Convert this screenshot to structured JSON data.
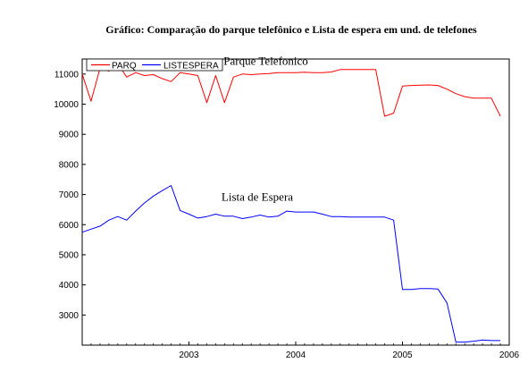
{
  "chart_data": {
    "type": "line",
    "title": "Gráfico: Comparação do parque telefônico e Lista de espera em und. de telefones",
    "xlabel": "",
    "ylabel": "",
    "xlim": [
      2002.0,
      2006.0
    ],
    "ylim": [
      2000,
      11500
    ],
    "x_ticks": [
      "2003",
      "2004",
      "2005",
      "2006"
    ],
    "y_ticks": [
      "3000",
      "4000",
      "5000",
      "6000",
      "7000",
      "8000",
      "9000",
      "10000",
      "11000"
    ],
    "legend": {
      "placement": "top-left",
      "entries": [
        "PARQ",
        "LISTESPERA"
      ]
    },
    "annotations": [
      {
        "text": "Parque Telefonico",
        "x": 2003.72,
        "y": 11300
      },
      {
        "text": "Lista de Espera",
        "x": 2003.64,
        "y": 6800
      }
    ],
    "series": [
      {
        "name": "PARQ",
        "color": "#ff0000",
        "x": [
          2002.0,
          2002.083,
          2002.167,
          2002.25,
          2002.333,
          2002.417,
          2002.5,
          2002.583,
          2002.667,
          2002.75,
          2002.833,
          2002.917,
          2003.0,
          2003.083,
          2003.167,
          2003.25,
          2003.333,
          2003.417,
          2003.5,
          2003.583,
          2003.667,
          2003.75,
          2003.833,
          2003.917,
          2004.0,
          2004.083,
          2004.167,
          2004.25,
          2004.333,
          2004.417,
          2004.5,
          2004.583,
          2004.667,
          2004.75,
          2004.833,
          2004.917,
          2005.0,
          2005.083,
          2005.167,
          2005.25,
          2005.333,
          2005.417,
          2005.5,
          2005.583,
          2005.667,
          2005.75,
          2005.833,
          2005.917
        ],
        "values": [
          11000,
          10100,
          11200,
          11100,
          11350,
          10900,
          11050,
          10950,
          10980,
          10850,
          10750,
          11050,
          11000,
          10950,
          10050,
          10950,
          10050,
          10900,
          11000,
          10980,
          11000,
          11020,
          11050,
          11050,
          11050,
          11060,
          11050,
          11050,
          11070,
          11150,
          11150,
          11150,
          11150,
          11150,
          9600,
          9700,
          10600,
          10620,
          10630,
          10640,
          10620,
          10500,
          10350,
          10250,
          10200,
          10200,
          10200,
          9600
        ]
      },
      {
        "name": "LISTESPERA",
        "color": "#0000ff",
        "x": [
          2002.0,
          2002.083,
          2002.167,
          2002.25,
          2002.333,
          2002.417,
          2002.5,
          2002.583,
          2002.667,
          2002.75,
          2002.833,
          2002.917,
          2003.0,
          2003.083,
          2003.167,
          2003.25,
          2003.333,
          2003.417,
          2003.5,
          2003.583,
          2003.667,
          2003.75,
          2003.833,
          2003.917,
          2004.0,
          2004.083,
          2004.167,
          2004.25,
          2004.333,
          2004.417,
          2004.5,
          2004.583,
          2004.667,
          2004.75,
          2004.833,
          2004.917,
          2005.0,
          2005.083,
          2005.167,
          2005.25,
          2005.333,
          2005.417,
          2005.5,
          2005.583,
          2005.667,
          2005.75,
          2005.833,
          2005.917
        ],
        "values": [
          5750,
          5850,
          5950,
          6150,
          6270,
          6150,
          6450,
          6720,
          6950,
          7130,
          7300,
          6470,
          6350,
          6220,
          6270,
          6350,
          6280,
          6280,
          6200,
          6250,
          6320,
          6250,
          6280,
          6450,
          6420,
          6420,
          6420,
          6350,
          6270,
          6270,
          6250,
          6250,
          6250,
          6250,
          6250,
          6150,
          3850,
          3850,
          3880,
          3880,
          3860,
          3400,
          2100,
          2100,
          2130,
          2170,
          2150,
          2150
        ]
      }
    ]
  }
}
